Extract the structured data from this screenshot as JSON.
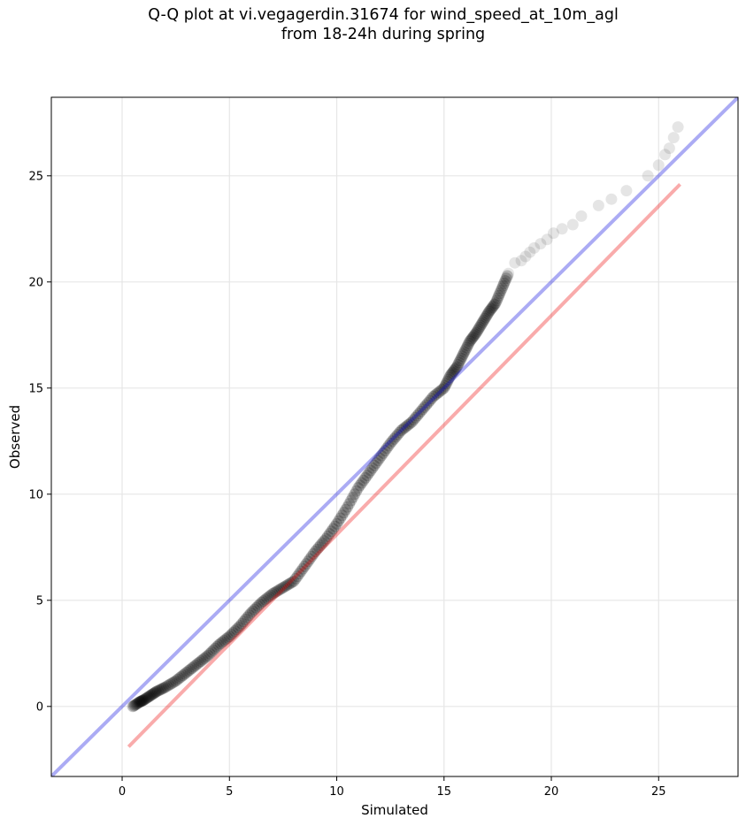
{
  "chart_data": {
    "type": "scatter",
    "title_line1": "Q-Q plot at vi.vegagerdin.31674 for wind_speed_at_10m_agl",
    "title_line2": "from 18-24h during spring",
    "xlabel": "Simulated",
    "ylabel": "Observed",
    "xlim": [
      -3.3,
      28.7
    ],
    "ylim": [
      -3.3,
      28.7
    ],
    "x_ticks": [
      0,
      5,
      10,
      15,
      20,
      25
    ],
    "y_ticks": [
      0,
      5,
      10,
      15,
      20,
      25
    ],
    "grid": true,
    "colors": {
      "points": "#000000",
      "identity_line": "#0000dd",
      "fit_line": "#ee0000"
    },
    "identity_line": {
      "slope": 1,
      "intercept": 0
    },
    "fit_line": {
      "x_start": 0.3,
      "y_start": -1.9,
      "x_end": 26.0,
      "y_end": 24.6
    },
    "points": {
      "x": [
        0.5,
        0.8,
        1.0,
        1.3,
        1.6,
        2.0,
        2.5,
        3.0,
        3.5,
        4.0,
        4.5,
        5.0,
        5.5,
        6.0,
        6.5,
        7.0,
        7.5,
        8.0,
        8.5,
        9.0,
        9.5,
        10.0,
        10.5,
        11.0,
        11.5,
        12.0,
        12.5,
        13.0,
        13.5,
        14.0,
        14.5,
        15.0,
        15.3,
        15.6,
        15.9,
        16.2,
        16.5,
        16.8,
        17.1,
        17.4,
        17.7,
        18.0,
        18.3,
        18.6,
        18.8,
        19.0,
        19.2,
        19.5,
        19.8,
        20.1,
        20.5,
        21.0,
        21.4,
        22.2,
        22.8,
        23.5,
        24.5,
        25.0,
        25.3,
        25.5,
        25.7,
        25.9
      ],
      "y": [
        0.0,
        0.2,
        0.3,
        0.5,
        0.7,
        0.9,
        1.2,
        1.6,
        2.0,
        2.4,
        2.9,
        3.3,
        3.8,
        4.4,
        4.9,
        5.3,
        5.6,
        5.9,
        6.6,
        7.3,
        7.9,
        8.6,
        9.4,
        10.3,
        11.0,
        11.7,
        12.4,
        13.0,
        13.4,
        14.0,
        14.6,
        15.0,
        15.6,
        16.0,
        16.6,
        17.2,
        17.6,
        18.1,
        18.6,
        19.0,
        19.7,
        20.4,
        20.9,
        21.0,
        21.2,
        21.4,
        21.6,
        21.8,
        22.0,
        22.3,
        22.5,
        22.7,
        23.1,
        23.6,
        23.9,
        24.3,
        25.0,
        25.5,
        26.0,
        26.3,
        26.8,
        27.3
      ]
    }
  }
}
